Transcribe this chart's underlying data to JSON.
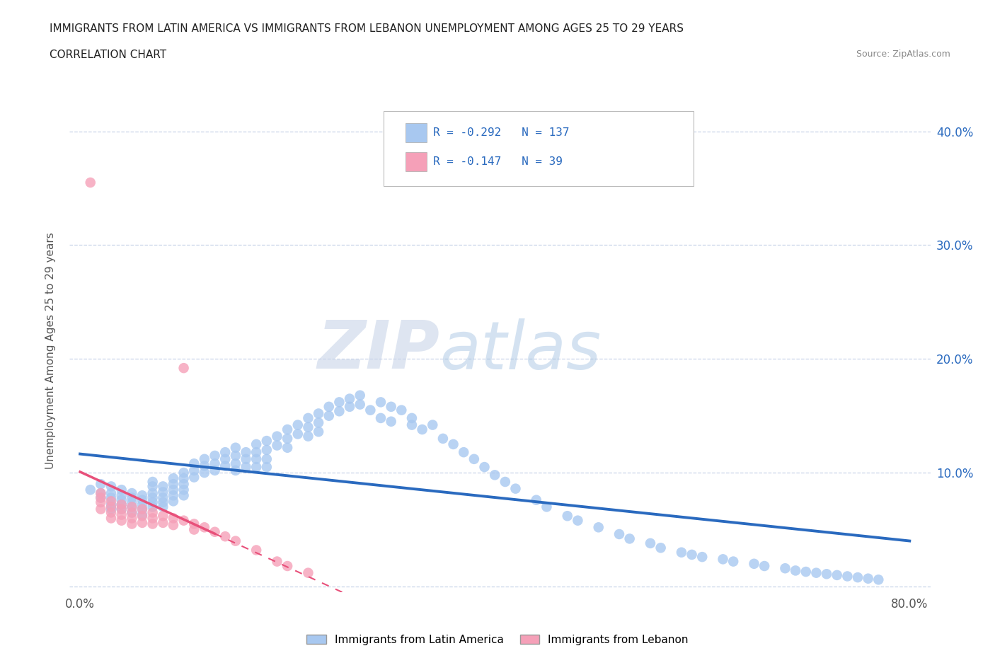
{
  "title_line1": "IMMIGRANTS FROM LATIN AMERICA VS IMMIGRANTS FROM LEBANON UNEMPLOYMENT AMONG AGES 25 TO 29 YEARS",
  "title_line2": "CORRELATION CHART",
  "source_text": "Source: ZipAtlas.com",
  "ylabel": "Unemployment Among Ages 25 to 29 years",
  "xlim": [
    -0.01,
    0.82
  ],
  "ylim": [
    -0.005,
    0.42
  ],
  "color_latin": "#a8c8f0",
  "color_lebanon": "#f5a0b8",
  "color_line_latin": "#2a6abf",
  "color_line_lebanon": "#e8507a",
  "R_latin": -0.292,
  "N_latin": 137,
  "R_lebanon": -0.147,
  "N_lebanon": 39,
  "legend_label_latin": "Immigrants from Latin America",
  "legend_label_lebanon": "Immigrants from Lebanon",
  "watermark_zip": "ZIP",
  "watermark_atlas": "atlas",
  "background_color": "#ffffff",
  "grid_color": "#c8d4e8",
  "latin_x": [
    0.01,
    0.02,
    0.02,
    0.02,
    0.03,
    0.03,
    0.03,
    0.03,
    0.03,
    0.04,
    0.04,
    0.04,
    0.04,
    0.04,
    0.05,
    0.05,
    0.05,
    0.05,
    0.05,
    0.06,
    0.06,
    0.06,
    0.06,
    0.06,
    0.07,
    0.07,
    0.07,
    0.07,
    0.07,
    0.07,
    0.08,
    0.08,
    0.08,
    0.08,
    0.08,
    0.09,
    0.09,
    0.09,
    0.09,
    0.09,
    0.1,
    0.1,
    0.1,
    0.1,
    0.1,
    0.11,
    0.11,
    0.11,
    0.12,
    0.12,
    0.12,
    0.13,
    0.13,
    0.13,
    0.14,
    0.14,
    0.14,
    0.15,
    0.15,
    0.15,
    0.15,
    0.16,
    0.16,
    0.16,
    0.17,
    0.17,
    0.17,
    0.17,
    0.18,
    0.18,
    0.18,
    0.18,
    0.19,
    0.19,
    0.2,
    0.2,
    0.2,
    0.21,
    0.21,
    0.22,
    0.22,
    0.22,
    0.23,
    0.23,
    0.23,
    0.24,
    0.24,
    0.25,
    0.25,
    0.26,
    0.26,
    0.27,
    0.27,
    0.28,
    0.29,
    0.29,
    0.3,
    0.3,
    0.31,
    0.32,
    0.32,
    0.33,
    0.34,
    0.35,
    0.36,
    0.37,
    0.38,
    0.39,
    0.4,
    0.41,
    0.42,
    0.44,
    0.45,
    0.47,
    0.48,
    0.5,
    0.52,
    0.53,
    0.55,
    0.56,
    0.58,
    0.59,
    0.6,
    0.62,
    0.63,
    0.65,
    0.66,
    0.68,
    0.69,
    0.7,
    0.71,
    0.72,
    0.73,
    0.74,
    0.75,
    0.76,
    0.77
  ],
  "latin_y": [
    0.085,
    0.09,
    0.082,
    0.078,
    0.088,
    0.082,
    0.078,
    0.072,
    0.068,
    0.085,
    0.08,
    0.076,
    0.072,
    0.068,
    0.082,
    0.078,
    0.074,
    0.07,
    0.065,
    0.08,
    0.076,
    0.072,
    0.068,
    0.063,
    0.092,
    0.088,
    0.082,
    0.078,
    0.074,
    0.07,
    0.088,
    0.083,
    0.078,
    0.074,
    0.07,
    0.095,
    0.09,
    0.085,
    0.08,
    0.075,
    0.1,
    0.095,
    0.09,
    0.085,
    0.08,
    0.108,
    0.102,
    0.096,
    0.112,
    0.106,
    0.1,
    0.115,
    0.108,
    0.102,
    0.118,
    0.112,
    0.106,
    0.122,
    0.115,
    0.108,
    0.102,
    0.118,
    0.112,
    0.105,
    0.125,
    0.118,
    0.112,
    0.105,
    0.128,
    0.12,
    0.112,
    0.105,
    0.132,
    0.124,
    0.138,
    0.13,
    0.122,
    0.142,
    0.134,
    0.148,
    0.14,
    0.132,
    0.152,
    0.144,
    0.136,
    0.158,
    0.15,
    0.162,
    0.154,
    0.165,
    0.158,
    0.168,
    0.16,
    0.155,
    0.162,
    0.148,
    0.158,
    0.145,
    0.155,
    0.142,
    0.148,
    0.138,
    0.142,
    0.13,
    0.125,
    0.118,
    0.112,
    0.105,
    0.098,
    0.092,
    0.086,
    0.076,
    0.07,
    0.062,
    0.058,
    0.052,
    0.046,
    0.042,
    0.038,
    0.034,
    0.03,
    0.028,
    0.026,
    0.024,
    0.022,
    0.02,
    0.018,
    0.016,
    0.014,
    0.013,
    0.012,
    0.011,
    0.01,
    0.009,
    0.008,
    0.007,
    0.006
  ],
  "lebanon_x": [
    0.01,
    0.02,
    0.02,
    0.02,
    0.02,
    0.03,
    0.03,
    0.03,
    0.03,
    0.04,
    0.04,
    0.04,
    0.04,
    0.05,
    0.05,
    0.05,
    0.05,
    0.06,
    0.06,
    0.06,
    0.07,
    0.07,
    0.07,
    0.08,
    0.08,
    0.09,
    0.09,
    0.1,
    0.1,
    0.11,
    0.11,
    0.12,
    0.13,
    0.14,
    0.15,
    0.17,
    0.19,
    0.2,
    0.22
  ],
  "lebanon_y": [
    0.355,
    0.082,
    0.078,
    0.074,
    0.068,
    0.075,
    0.07,
    0.065,
    0.06,
    0.072,
    0.068,
    0.063,
    0.058,
    0.07,
    0.065,
    0.06,
    0.055,
    0.068,
    0.062,
    0.056,
    0.065,
    0.06,
    0.055,
    0.062,
    0.056,
    0.06,
    0.054,
    0.192,
    0.058,
    0.055,
    0.05,
    0.052,
    0.048,
    0.044,
    0.04,
    0.032,
    0.022,
    0.018,
    0.012
  ]
}
